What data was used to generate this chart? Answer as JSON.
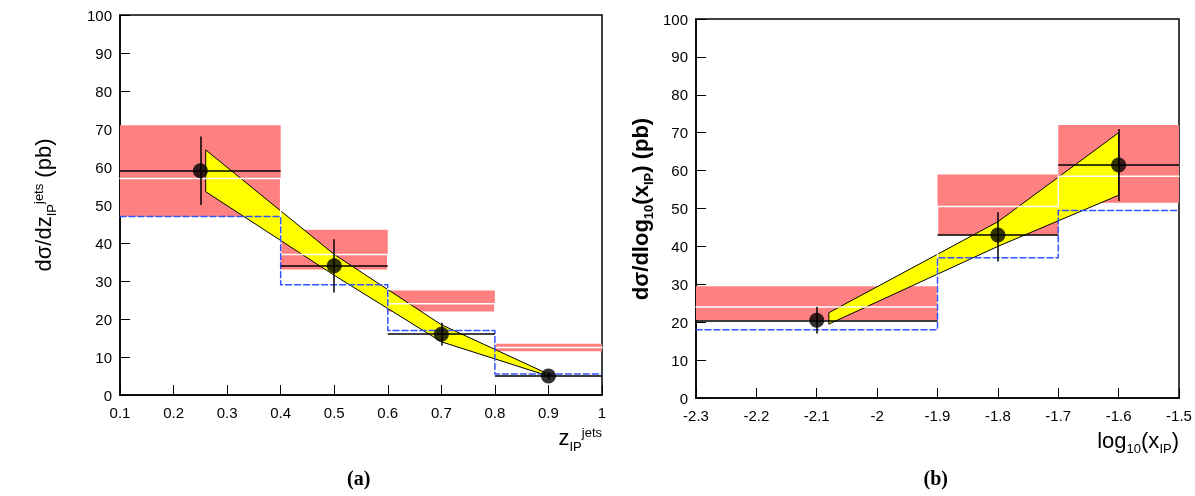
{
  "chart_data": [
    {
      "type": "scatter",
      "xlabel": "z$_{IP}$$^{jets}$",
      "ylabel": "dσ/dz$_{IP}$$^{jets}$ (pb)",
      "annotations": [
        "(a)"
      ],
      "xlim": [
        0.1,
        1
      ],
      "ylim": [
        0,
        100
      ],
      "xticks": [
        0.1,
        0.2,
        0.3,
        0.4,
        0.5,
        0.6,
        0.7,
        0.8,
        0.9,
        1
      ],
      "yticks": [
        0,
        10,
        20,
        30,
        40,
        50,
        60,
        70,
        80,
        90,
        100
      ],
      "series": [
        {
          "type": "step",
          "color": "#ffffff",
          "x": [
            0.1,
            0.4,
            0.6,
            0.8,
            1
          ],
          "values": [
            57,
            37,
            24,
            12.5,
            12.5
          ],
          "lower": [
            47,
            33,
            22,
            11.5,
            11.5
          ],
          "upper": [
            71,
            43.5,
            27.5,
            13.5,
            13.5
          ],
          "line_style": "solid",
          "marker": "none"
        },
        {
          "type": "step",
          "color": "#3355ff",
          "x": [
            0.1,
            0.4,
            0.6,
            0.8,
            1
          ],
          "values": [
            47,
            29,
            17,
            5.5,
            5.5
          ],
          "line_style": "dashed",
          "marker": "none"
        },
        {
          "type": "area",
          "color": "#ffff00",
          "x": [
            0.26,
            0.5,
            0.7,
            0.9
          ],
          "values": [
            null,
            null,
            null,
            null
          ],
          "lower": [
            53.5,
            31.5,
            14,
            5
          ],
          "upper": [
            64.5,
            37,
            18.5,
            5.5
          ]
        },
        {
          "color": "#000000",
          "x": [
            0.25,
            0.5,
            0.7,
            0.9
          ],
          "values": [
            59,
            34,
            16,
            5
          ],
          "marker": "circle",
          "errors": [
            [
              50,
              68
            ],
            [
              27,
              41
            ],
            [
              13,
              19
            ],
            [
              4,
              6
            ]
          ],
          "xerrors": [
            [
              0.1,
              0.4
            ],
            [
              0.4,
              0.6
            ],
            [
              0.6,
              0.8
            ],
            [
              0.8,
              1
            ]
          ]
        }
      ]
    },
    {
      "type": "scatter",
      "xlabel": "log$_{10}$(x$_{IP}$)",
      "ylabel": "dσ/dlog$_{10}$(x$_{IP}$) (pb)",
      "annotations": [
        "(b)"
      ],
      "xlim": [
        -2.3,
        -1.5
      ],
      "ylim": [
        0,
        100
      ],
      "xticks": [
        -2.3,
        -2.2,
        -2.1,
        -2,
        -1.9,
        -1.8,
        -1.7,
        -1.6,
        -1.5
      ],
      "yticks": [
        0,
        10,
        20,
        30,
        40,
        50,
        60,
        70,
        80,
        90,
        100
      ],
      "series": [
        {
          "type": "step",
          "color": "#ffffff",
          "x": [
            -2.3,
            -1.9,
            -1.7,
            -1.5
          ],
          "values": [
            24,
            50.5,
            58.5,
            58.5
          ],
          "lower": [
            20.5,
            43,
            51.5,
            51.5
          ],
          "upper": [
            29.5,
            59,
            72,
            72
          ],
          "line_style": "solid",
          "marker": "none"
        },
        {
          "type": "step",
          "color": "#3355ff",
          "x": [
            -2.3,
            -1.9,
            -1.7,
            -1.5
          ],
          "values": [
            18,
            37,
            49.5,
            49.5
          ],
          "line_style": "dashed",
          "marker": "none"
        },
        {
          "type": "area",
          "color": "#ffff00",
          "x": [
            -2.08,
            -1.8,
            -1.6
          ],
          "values": [
            null,
            null,
            null
          ],
          "lower": [
            19.5,
            40,
            53.5
          ],
          "upper": [
            22.5,
            46.5,
            70
          ]
        },
        {
          "color": "#000000",
          "x": [
            -2.1,
            -1.8,
            -1.6
          ],
          "values": [
            20.5,
            43,
            61.5
          ],
          "marker": "circle",
          "errors": [
            [
              17,
              24
            ],
            [
              36,
              49
            ],
            [
              52,
              71
            ]
          ],
          "xerrors": [
            [
              -2.3,
              -1.9
            ],
            [
              -1.9,
              -1.7
            ],
            [
              -1.7,
              -1.5
            ]
          ]
        }
      ]
    }
  ]
}
